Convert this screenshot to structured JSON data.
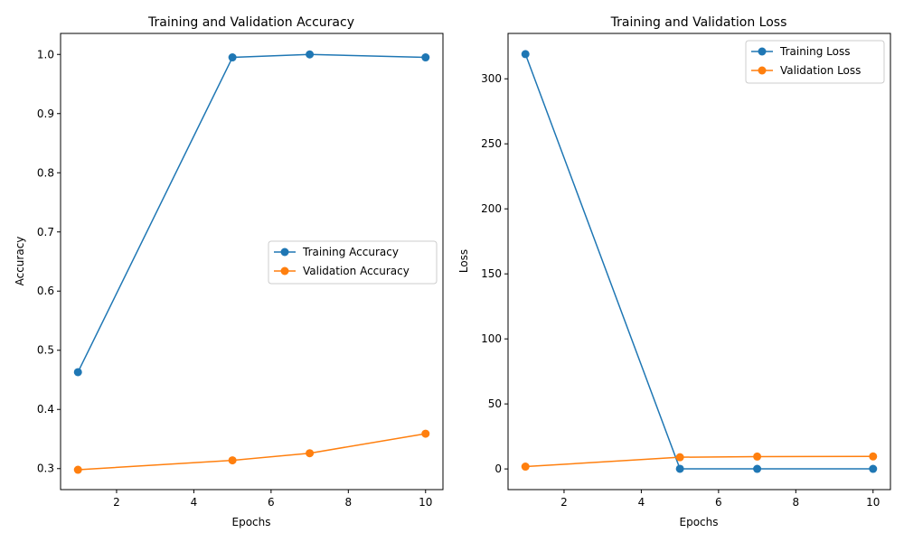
{
  "chart_data": [
    {
      "type": "line",
      "title": "Training and Validation Accuracy",
      "xlabel": "Epochs",
      "ylabel": "Accuracy",
      "x": [
        1,
        5,
        7,
        10
      ],
      "series": [
        {
          "name": "Training Accuracy",
          "color": "#1f77b4",
          "values": [
            0.463,
            0.995,
            1.0,
            0.995
          ]
        },
        {
          "name": "Validation Accuracy",
          "color": "#ff7f0e",
          "values": [
            0.298,
            0.314,
            0.326,
            0.359
          ]
        }
      ],
      "xlim": [
        0.55,
        10.45
      ],
      "ylim": [
        0.2645,
        1.0355
      ],
      "xticks": [
        2,
        4,
        6,
        8,
        10
      ],
      "xtick_labels": [
        "2",
        "4",
        "6",
        "8",
        "10"
      ],
      "yticks": [
        0.3,
        0.4,
        0.5,
        0.6,
        0.7,
        0.8,
        0.9,
        1.0
      ],
      "ytick_labels": [
        "0.3",
        "0.4",
        "0.5",
        "0.6",
        "0.7",
        "0.8",
        "0.9",
        "1.0"
      ],
      "legend": "center-right",
      "grid": false
    },
    {
      "type": "line",
      "title": "Training and Validation Loss",
      "xlabel": "Epochs",
      "ylabel": "Loss",
      "x": [
        1,
        5,
        7,
        10
      ],
      "series": [
        {
          "name": "Training Loss",
          "color": "#1f77b4",
          "values": [
            319,
            0.1,
            0.05,
            0.05
          ]
        },
        {
          "name": "Validation Loss",
          "color": "#ff7f0e",
          "values": [
            1.8,
            9.0,
            9.5,
            9.6
          ]
        }
      ],
      "xlim": [
        0.55,
        10.45
      ],
      "ylim": [
        -15.9,
        334.9
      ],
      "xticks": [
        2,
        4,
        6,
        8,
        10
      ],
      "xtick_labels": [
        "2",
        "4",
        "6",
        "8",
        "10"
      ],
      "yticks": [
        0,
        50,
        100,
        150,
        200,
        250,
        300
      ],
      "ytick_labels": [
        "0",
        "50",
        "100",
        "150",
        "200",
        "250",
        "300"
      ],
      "legend": "top-right",
      "grid": false
    }
  ]
}
